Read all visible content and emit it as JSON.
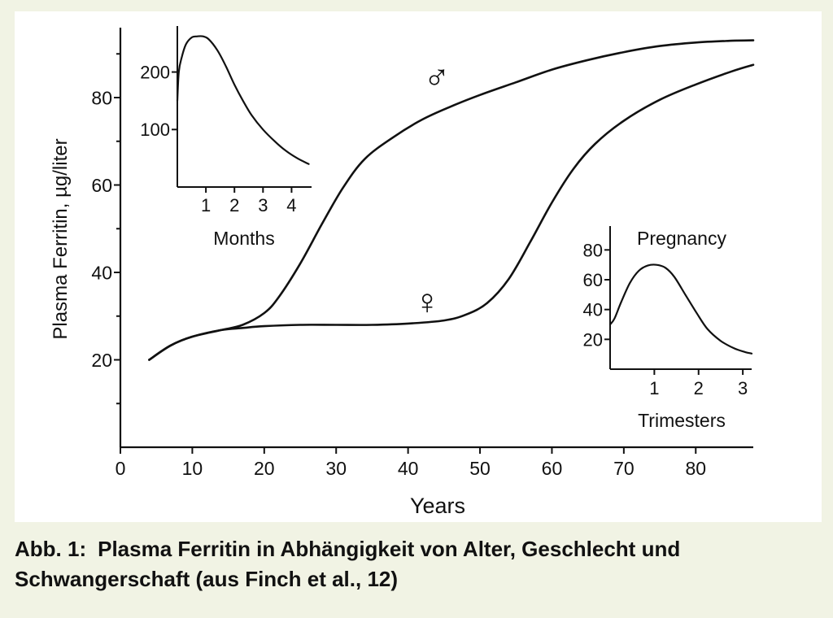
{
  "caption": {
    "label": "Abb. 1:",
    "text": "Plasma Ferritin in Abhängigkeit von Alter, Geschlecht und Schwangerschaft (aus Finch et al., 12)"
  },
  "chart_data": [
    {
      "id": "main",
      "type": "line",
      "title": "",
      "xlabel": "Years",
      "ylabel": "Plasma Ferritin, µg/liter",
      "xlim": [
        0,
        88
      ],
      "ylim": [
        0,
        96
      ],
      "xticks": [
        "0",
        "10",
        "20",
        "30",
        "40",
        "50",
        "60",
        "70",
        "80"
      ],
      "xtick_values": [
        0,
        10,
        20,
        30,
        40,
        50,
        60,
        70,
        80
      ],
      "yticks": [
        "20",
        "40",
        "60",
        "80"
      ],
      "ytick_values": [
        20,
        40,
        60,
        80
      ],
      "grid": false,
      "series": [
        {
          "name": "♂",
          "x": [
            4,
            7,
            10,
            14,
            17,
            20,
            22,
            25,
            28,
            31,
            34,
            38,
            42,
            46,
            50,
            55,
            60,
            65,
            70,
            75,
            80,
            85,
            88
          ],
          "y": [
            20,
            23.3,
            25.3,
            26.8,
            28,
            30.7,
            34.3,
            42,
            51,
            59.5,
            66,
            71,
            75,
            78,
            80.6,
            83.5,
            86.4,
            88.6,
            90.4,
            91.8,
            92.6,
            93,
            93.1
          ]
        },
        {
          "name": "♀",
          "x": [
            4,
            7,
            10,
            14,
            17,
            20,
            25,
            30,
            35,
            40,
            45,
            48,
            51,
            54,
            57,
            60,
            63,
            66,
            70,
            75,
            80,
            85,
            88
          ],
          "y": [
            20,
            23.3,
            25.3,
            26.8,
            27.3,
            27.7,
            28,
            28,
            28,
            28.3,
            29,
            30.3,
            33,
            38.5,
            47,
            56,
            63.7,
            69.4,
            74.7,
            79.5,
            83,
            86,
            87.5
          ]
        }
      ]
    },
    {
      "id": "months_inset",
      "type": "line",
      "title": "",
      "xlabel": "Months",
      "ylabel": "",
      "xlim": [
        0,
        4.7
      ],
      "ylim": [
        0,
        280
      ],
      "xticks": [
        "1",
        "2",
        "3",
        "4"
      ],
      "xtick_values": [
        1,
        2,
        3,
        4
      ],
      "yticks": [
        "100",
        "200"
      ],
      "ytick_values": [
        100,
        200
      ],
      "series": [
        {
          "name": "",
          "x": [
            0,
            0.05,
            0.15,
            0.3,
            0.5,
            0.7,
            0.9,
            1.1,
            1.4,
            1.7,
            2,
            2.3,
            2.6,
            3,
            3.4,
            3.8,
            4.2,
            4.6
          ],
          "y": [
            150,
            200,
            225,
            248,
            260,
            262,
            262,
            257,
            238,
            210,
            178,
            150,
            125,
            100,
            80,
            63,
            50,
            40
          ]
        }
      ]
    },
    {
      "id": "pregnancy_inset",
      "type": "line",
      "title": "Pregnancy",
      "xlabel": "Trimesters",
      "ylabel": "",
      "xlim": [
        0,
        3.2
      ],
      "ylim": [
        0,
        96
      ],
      "xticks": [
        "1",
        "2",
        "3"
      ],
      "xtick_values": [
        1,
        2,
        3
      ],
      "yticks": [
        "20",
        "40",
        "60",
        "80"
      ],
      "ytick_values": [
        20,
        40,
        60,
        80
      ],
      "series": [
        {
          "name": "",
          "x": [
            0,
            0.1,
            0.25,
            0.45,
            0.65,
            0.85,
            1.05,
            1.25,
            1.45,
            1.7,
            1.95,
            2.2,
            2.5,
            2.8,
            3.05,
            3.2
          ],
          "y": [
            30,
            34,
            45,
            58,
            66,
            69.5,
            70,
            68,
            62,
            50,
            38,
            27,
            19,
            14,
            11.5,
            10.5
          ]
        }
      ]
    }
  ]
}
